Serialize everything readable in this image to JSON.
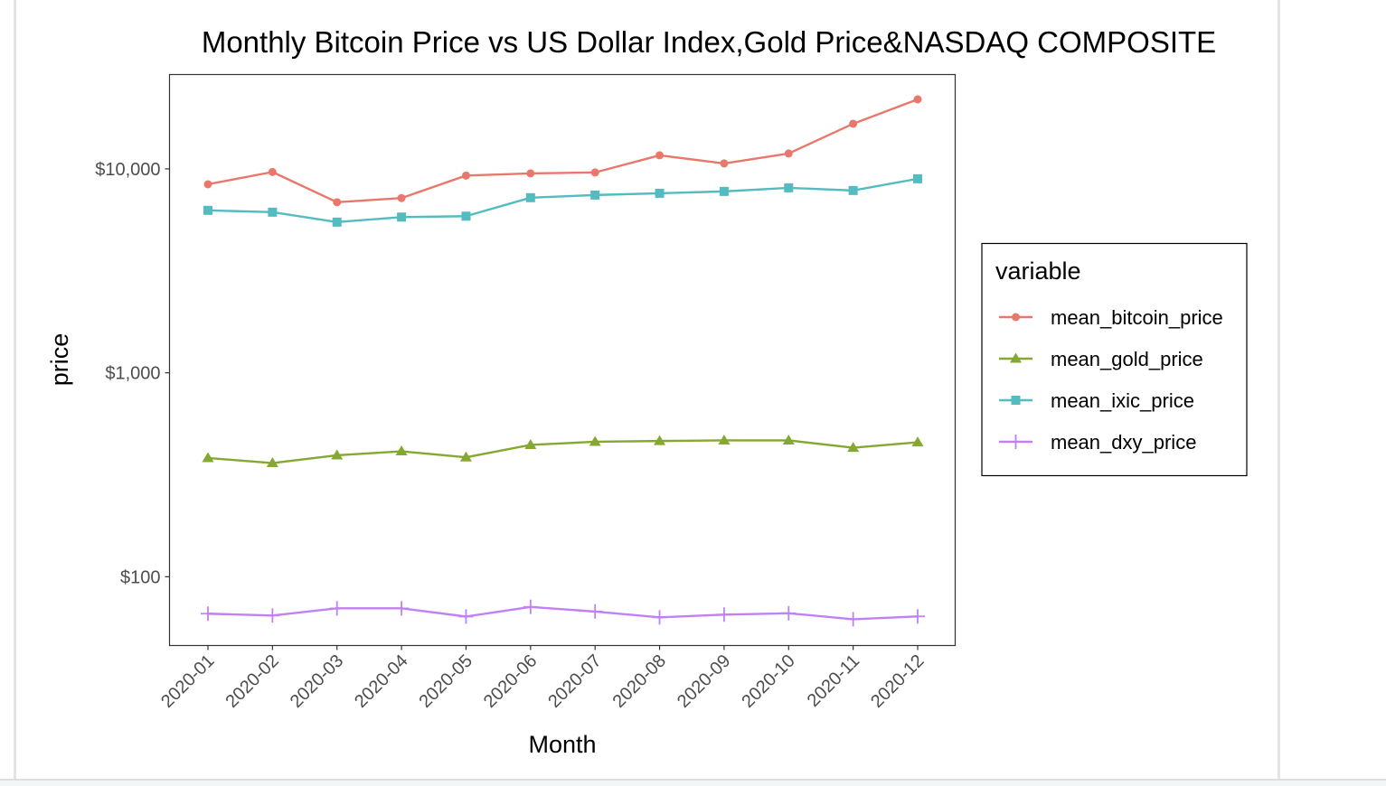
{
  "chart_data": {
    "type": "line",
    "title": "Monthly Bitcoin Price vs US Dollar Index,Gold Price&NASDAQ COMPOSITE",
    "xlabel": "Month",
    "ylabel": "price",
    "yscale": "log10",
    "ylim": [
      46,
      29000
    ],
    "yticks": [
      100,
      1000,
      10000
    ],
    "ytick_labels": [
      "$100",
      "$1,000",
      "$10,000"
    ],
    "grid": false,
    "legend_title": "variable",
    "legend_position": "right",
    "categories": [
      "2020-01",
      "2020-02",
      "2020-03",
      "2020-04",
      "2020-05",
      "2020-06",
      "2020-07",
      "2020-08",
      "2020-09",
      "2020-10",
      "2020-11",
      "2020-12"
    ],
    "series": [
      {
        "name": "mean_bitcoin_price",
        "color": "#E9786C",
        "marker": "circle",
        "values": [
          8400,
          9650,
          6860,
          7190,
          9270,
          9500,
          9600,
          11650,
          10630,
          11890,
          16640,
          21910
        ]
      },
      {
        "name": "mean_gold_price",
        "color": "#85A832",
        "marker": "triangle",
        "values": [
          382,
          361,
          394,
          412,
          385,
          443,
          459,
          463,
          466,
          466,
          429,
          456
        ]
      },
      {
        "name": "mean_ixic_price",
        "color": "#53BCC0",
        "marker": "square",
        "values": [
          6260,
          6130,
          5480,
          5800,
          5860,
          7220,
          7440,
          7590,
          7750,
          8070,
          7830,
          8940
        ]
      },
      {
        "name": "mean_dxy_price",
        "color": "#C181F5",
        "marker": "plus",
        "values": [
          65.9,
          64.5,
          70.0,
          70.0,
          63.8,
          71.1,
          67.5,
          63.2,
          65.2,
          66.2,
          61.9,
          63.9
        ]
      }
    ]
  }
}
